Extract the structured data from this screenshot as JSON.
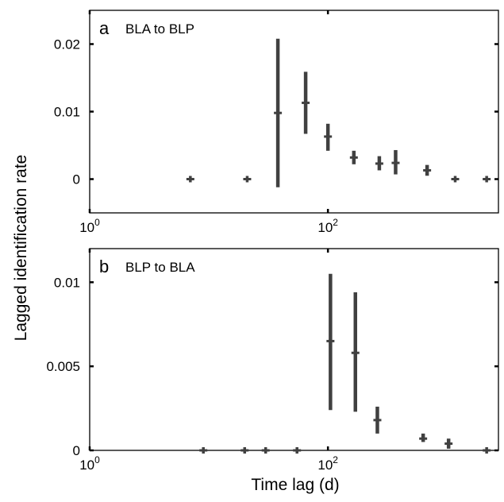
{
  "chart_data": [
    {
      "type": "scatter",
      "panel_label": "a",
      "title": "BLA to BLP",
      "xscale": "log",
      "xlim": [
        1,
        2700
      ],
      "ylim": [
        -0.005,
        0.025
      ],
      "xticks": [
        1,
        100
      ],
      "xtick_labels": [
        {
          "base": "10",
          "exp": "0"
        },
        {
          "base": "10",
          "exp": "2"
        }
      ],
      "yticks": [
        0,
        0.01,
        0.02
      ],
      "ytick_labels": [
        "0",
        "0.01",
        "0.02"
      ],
      "series": [
        {
          "x": [
            7,
            21,
            38,
            65,
            100,
            165,
            270,
            370,
            680,
            1170,
            2150
          ],
          "y": [
            0,
            0,
            0.0098,
            0.0113,
            0.0063,
            0.0032,
            0.0023,
            0.0024,
            0.0013,
            0.0,
            0.0
          ],
          "err_low": [
            0.0003,
            0.0003,
            -0.0012,
            0.0067,
            0.0042,
            0.0022,
            0.0013,
            0.0007,
            0.0005,
            0.0,
            0.0
          ],
          "err_high": [
            0.0003,
            0.0003,
            0.0208,
            0.0159,
            0.0082,
            0.0042,
            0.0034,
            0.0043,
            0.0021,
            0.0,
            0.0
          ]
        }
      ]
    },
    {
      "type": "scatter",
      "panel_label": "b",
      "title": "BLP to BLA",
      "xscale": "log",
      "xlim": [
        1,
        2700
      ],
      "ylim": [
        0,
        0.012
      ],
      "xticks": [
        1,
        100
      ],
      "xtick_labels": [
        {
          "base": "10",
          "exp": "0"
        },
        {
          "base": "10",
          "exp": "2"
        }
      ],
      "yticks": [
        0,
        0.005,
        0.01
      ],
      "ytick_labels": [
        "0",
        "0.005",
        "0.01"
      ],
      "series": [
        {
          "x": [
            9,
            20,
            30,
            55,
            105,
            170,
            260,
            630,
            1030,
            2150
          ],
          "y": [
            0,
            0,
            0,
            0,
            0.0065,
            0.0058,
            0.0018,
            0.0007,
            0.0004,
            0.0
          ],
          "err_low": [
            0,
            0,
            0,
            0,
            0.0024,
            0.0023,
            0.001,
            0.0005,
            0.0001,
            0.0
          ],
          "err_high": [
            0,
            0,
            0,
            0,
            0.0105,
            0.0094,
            0.0026,
            0.001,
            0.0007,
            0.0
          ]
        }
      ]
    }
  ],
  "ylabel": "Lagged identification rate",
  "xlabel": "Time lag (d)",
  "colors": {
    "marks": "#404040",
    "axis": "#000000"
  }
}
